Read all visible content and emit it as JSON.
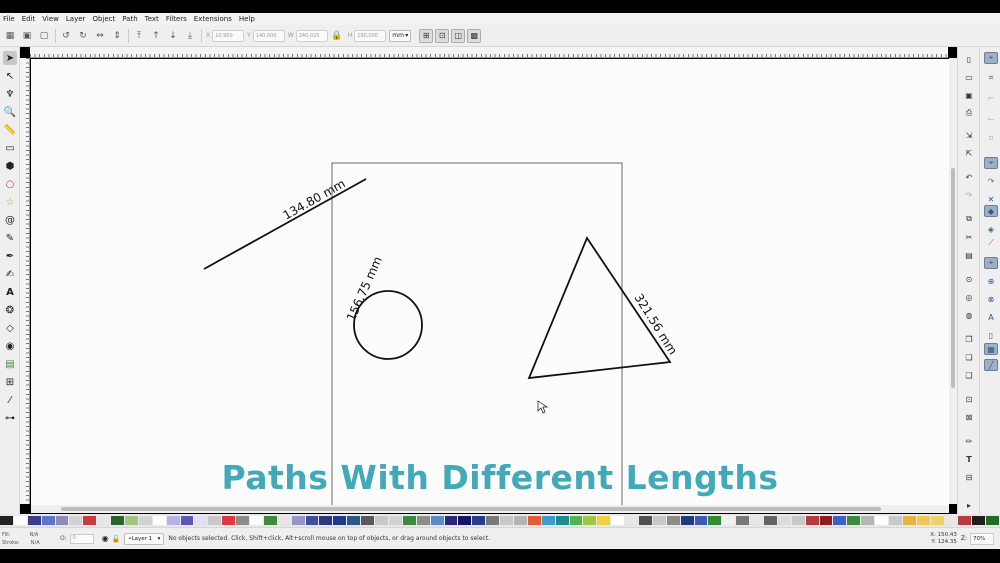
{
  "menu": [
    "File",
    "Edit",
    "View",
    "Layer",
    "Object",
    "Path",
    "Text",
    "Filters",
    "Extensions",
    "Help"
  ],
  "toolbar": {
    "x_label": "X",
    "x_value": "10,950",
    "y_label": "Y",
    "y_value": "140,000",
    "w_label": "W",
    "w_value": "240,025",
    "h_label": "H",
    "h_value": "190,000",
    "unit": "mm"
  },
  "drawing": {
    "line_measure": "134.80 mm",
    "circle_measure": "156.75 mm",
    "triangle_measure": "321.56 mm"
  },
  "caption": "Paths With Different Lengths",
  "status": {
    "fill_label": "Fill:",
    "fill_value": "N/A",
    "stroke_label": "Stroke:",
    "stroke_value": "N/A",
    "opacity_label": "O:",
    "opacity_value": "0",
    "layer": "•Layer 1",
    "message": "No objects selected. Click, Shift+click, Alt+scroll mouse on top of objects, or drag around objects to select.",
    "x_coord": "X: 150.43",
    "y_coord": "Y: 124.35",
    "zoom_label": "Z:",
    "zoom": "70%"
  },
  "palette": [
    "#222222",
    "#ffffff",
    "#3c3c8c",
    "#5a78c8",
    "#8c8cb4",
    "#d2d2d2",
    "#c83c3c",
    "#e6e6e6",
    "#286428",
    "#a0c878",
    "#d2d2d2",
    "#ffffff",
    "#b4b4e6",
    "#5a5ab4",
    "#e0e0f0",
    "#c8c8c8",
    "#dc3c3c",
    "#8c8c8c",
    "#ffffff",
    "#3c8c3c",
    "#e6e6e6",
    "#9696c8",
    "#3c50a0",
    "#283c78",
    "#1e3c82",
    "#285a8c",
    "#5a5a5a",
    "#c8c8c8",
    "#d2d2d2",
    "#3c8c3c",
    "#8c8c8c",
    "#5a8cc8",
    "#282878",
    "#141464",
    "#283c8c",
    "#787878",
    "#c8c8c8",
    "#b4b4b4",
    "#e65a3c",
    "#3c9ec8",
    "#1e8c8c",
    "#50b450",
    "#a0c83c",
    "#f0d23c",
    "#ffffff",
    "#e6e6e6",
    "#505050",
    "#c8c8c8",
    "#8c8c8c",
    "#1e3c82",
    "#3c5ab4",
    "#328c32",
    "#f0f0f0",
    "#787878",
    "#e6e6e6",
    "#646464",
    "#dcdcdc",
    "#c8c8c8",
    "#b43c3c",
    "#8c1e1e",
    "#3c64c8",
    "#3c8c3c",
    "#b4b4b4",
    "#ffffff",
    "#c8c8c8",
    "#e6b43c",
    "#f0c850",
    "#f0d264",
    "#e6e6e6",
    "#b43c3c",
    "#1e1e1e",
    "#1e6e1e"
  ]
}
